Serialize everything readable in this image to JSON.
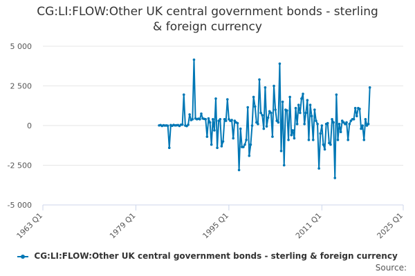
{
  "chart_data": {
    "type": "line",
    "title_line1": "CG:LI:FLOW:Other UK central government bonds - sterling",
    "title_line2": "& foreign currency",
    "xlabel": "",
    "ylabel": "",
    "ylim": [
      -5000,
      5000
    ],
    "y_ticks": [
      5000,
      2500,
      0,
      -2500,
      -5000
    ],
    "y_tick_labels": [
      "5 000",
      "2 500",
      "0",
      "-2 500",
      "-5 000"
    ],
    "x_start": "1963 Q1",
    "x_end": "2025 Q1",
    "x_ticks": [
      "1963 Q1",
      "1979 Q1",
      "1995 Q1",
      "2011 Q1",
      "2025 Q1"
    ],
    "grid": true,
    "legend_position": "bottom",
    "series": [
      {
        "name": "CG:LI:FLOW:Other UK central government bonds - sterling & foreign currency",
        "color": "#0077b5",
        "points": [
          [
            "1983 Q1",
            10
          ],
          [
            "1983 Q2",
            30
          ],
          [
            "1983 Q3",
            -20
          ],
          [
            "1983 Q4",
            20
          ],
          [
            "1984 Q1",
            0
          ],
          [
            "1984 Q2",
            10
          ],
          [
            "1984 Q3",
            -10
          ],
          [
            "1984 Q4",
            -1400
          ],
          [
            "1985 Q1",
            30
          ],
          [
            "1985 Q2",
            -10
          ],
          [
            "1985 Q3",
            40
          ],
          [
            "1985 Q4",
            10
          ],
          [
            "1986 Q1",
            20
          ],
          [
            "1986 Q2",
            30
          ],
          [
            "1986 Q3",
            -20
          ],
          [
            "1986 Q4",
            50
          ],
          [
            "1987 Q1",
            60
          ],
          [
            "1987 Q2",
            1950
          ],
          [
            "1987 Q3",
            0
          ],
          [
            "1987 Q4",
            -30
          ],
          [
            "1988 Q1",
            50
          ],
          [
            "1988 Q2",
            700
          ],
          [
            "1988 Q3",
            350
          ],
          [
            "1988 Q4",
            400
          ],
          [
            "1989 Q1",
            4150
          ],
          [
            "1989 Q2",
            450
          ],
          [
            "1989 Q3",
            400
          ],
          [
            "1989 Q4",
            430
          ],
          [
            "1990 Q1",
            400
          ],
          [
            "1990 Q2",
            750
          ],
          [
            "1990 Q3",
            450
          ],
          [
            "1990 Q4",
            420
          ],
          [
            "1991 Q1",
            400
          ],
          [
            "1991 Q2",
            -700
          ],
          [
            "1991 Q3",
            450
          ],
          [
            "1991 Q4",
            200
          ],
          [
            "1992 Q1",
            -1200
          ],
          [
            "1992 Q2",
            400
          ],
          [
            "1992 Q3",
            -300
          ],
          [
            "1992 Q4",
            1700
          ],
          [
            "1993 Q1",
            -1400
          ],
          [
            "1993 Q2",
            300
          ],
          [
            "1993 Q3",
            400
          ],
          [
            "1993 Q4",
            -1300
          ],
          [
            "1994 Q1",
            -1000
          ],
          [
            "1994 Q2",
            400
          ],
          [
            "1994 Q3",
            300
          ],
          [
            "1994 Q4",
            1650
          ],
          [
            "1995 Q1",
            400
          ],
          [
            "1995 Q2",
            300
          ],
          [
            "1995 Q3",
            350
          ],
          [
            "1995 Q4",
            -800
          ],
          [
            "1996 Q1",
            300
          ],
          [
            "1996 Q2",
            200
          ],
          [
            "1996 Q3",
            150
          ],
          [
            "1996 Q4",
            -2800
          ],
          [
            "1997 Q1",
            -200
          ],
          [
            "1997 Q2",
            -1350
          ],
          [
            "1997 Q3",
            -1350
          ],
          [
            "1997 Q4",
            -1200
          ],
          [
            "1998 Q1",
            -900
          ],
          [
            "1998 Q2",
            1150
          ],
          [
            "1998 Q3",
            -1900
          ],
          [
            "1998 Q4",
            -1200
          ],
          [
            "1999 Q1",
            0
          ],
          [
            "1999 Q2",
            1800
          ],
          [
            "1999 Q3",
            1200
          ],
          [
            "1999 Q4",
            200
          ],
          [
            "2000 Q1",
            100
          ],
          [
            "2000 Q2",
            2900
          ],
          [
            "2000 Q3",
            800
          ],
          [
            "2000 Q4",
            650
          ],
          [
            "2001 Q1",
            -200
          ],
          [
            "2001 Q2",
            2400
          ],
          [
            "2001 Q3",
            -50
          ],
          [
            "2001 Q4",
            500
          ],
          [
            "2002 Q1",
            900
          ],
          [
            "2002 Q2",
            800
          ],
          [
            "2002 Q3",
            -700
          ],
          [
            "2002 Q4",
            2500
          ],
          [
            "2003 Q1",
            1000
          ],
          [
            "2003 Q2",
            300
          ],
          [
            "2003 Q3",
            200
          ],
          [
            "2003 Q4",
            3900
          ],
          [
            "2004 Q1",
            -1600
          ],
          [
            "2004 Q2",
            1500
          ],
          [
            "2004 Q3",
            -2500
          ],
          [
            "2004 Q4",
            1000
          ],
          [
            "2005 Q1",
            950
          ],
          [
            "2005 Q2",
            -900
          ],
          [
            "2005 Q3",
            1800
          ],
          [
            "2005 Q4",
            -600
          ],
          [
            "2006 Q1",
            -300
          ],
          [
            "2006 Q2",
            -800
          ],
          [
            "2006 Q3",
            1100
          ],
          [
            "2006 Q4",
            100
          ],
          [
            "2007 Q1",
            1300
          ],
          [
            "2007 Q2",
            800
          ],
          [
            "2007 Q3",
            1700
          ],
          [
            "2007 Q4",
            2000
          ],
          [
            "2008 Q1",
            100
          ],
          [
            "2008 Q2",
            800
          ],
          [
            "2008 Q3",
            1600
          ],
          [
            "2008 Q4",
            -900
          ],
          [
            "2009 Q1",
            1300
          ],
          [
            "2009 Q2",
            600
          ],
          [
            "2009 Q3",
            -900
          ],
          [
            "2009 Q4",
            1000
          ],
          [
            "2010 Q1",
            300
          ],
          [
            "2010 Q2",
            100
          ],
          [
            "2010 Q3",
            -2700
          ],
          [
            "2010 Q4",
            -500
          ],
          [
            "2011 Q1",
            0
          ],
          [
            "2011 Q2",
            -1200
          ],
          [
            "2011 Q3",
            -1500
          ],
          [
            "2011 Q4",
            100
          ],
          [
            "2012 Q1",
            150
          ],
          [
            "2012 Q2",
            -1100
          ],
          [
            "2012 Q3",
            -1200
          ],
          [
            "2012 Q4",
            400
          ],
          [
            "2013 Q1",
            200
          ],
          [
            "2013 Q2",
            -3300
          ],
          [
            "2013 Q3",
            1950
          ],
          [
            "2013 Q4",
            -900
          ],
          [
            "2014 Q1",
            100
          ],
          [
            "2014 Q2",
            -400
          ],
          [
            "2014 Q3",
            300
          ],
          [
            "2014 Q4",
            200
          ],
          [
            "2015 Q1",
            100
          ],
          [
            "2015 Q2",
            200
          ],
          [
            "2015 Q3",
            -900
          ],
          [
            "2015 Q4",
            100
          ],
          [
            "2016 Q1",
            300
          ],
          [
            "2016 Q2",
            400
          ],
          [
            "2016 Q3",
            400
          ],
          [
            "2016 Q4",
            1100
          ],
          [
            "2017 Q1",
            600
          ],
          [
            "2017 Q2",
            1100
          ],
          [
            "2017 Q3",
            1050
          ],
          [
            "2017 Q4",
            -200
          ],
          [
            "2018 Q1",
            0
          ],
          [
            "2018 Q2",
            -900
          ],
          [
            "2018 Q3",
            400
          ],
          [
            "2018 Q4",
            0
          ],
          [
            "2019 Q1",
            100
          ],
          [
            "2019 Q2",
            2400
          ]
        ]
      }
    ]
  },
  "legend": {
    "label": "CG:LI:FLOW:Other UK central government bonds - sterling & foreign currency"
  },
  "source_label": "Source:"
}
